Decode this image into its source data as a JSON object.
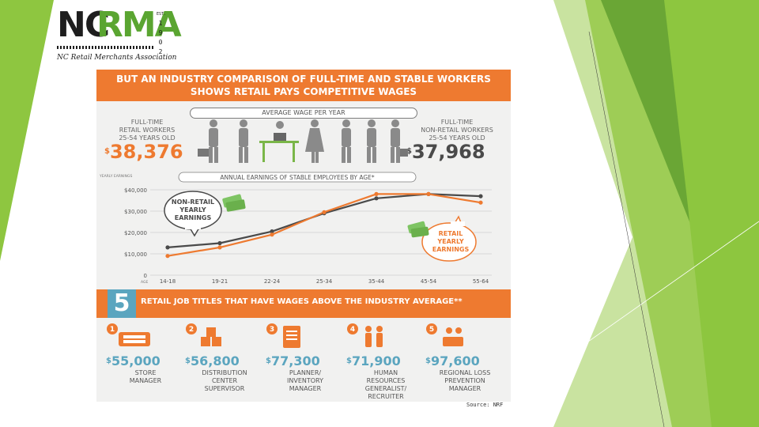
{
  "logo": {
    "nc": "NC",
    "rma": "RMA",
    "est": [
      "EST.",
      "1",
      "9",
      "0",
      "2"
    ],
    "subtitle": "NC Retail Merchants Association"
  },
  "infographic": {
    "title_line1": "BUT AN INDUSTRY COMPARISON OF FULL-TIME AND STABLE WORKERS",
    "title_line2": "SHOWS RETAIL PAYS COMPETITIVE WAGES",
    "average_wage_label": "AVERAGE WAGE PER YEAR",
    "retail_workers_label": [
      "FULL-TIME",
      "RETAIL WORKERS",
      "25-54 YEARS OLD"
    ],
    "non_retail_workers_label": [
      "FULL-TIME",
      "NON-RETAIL WORKERS",
      "25-54 YEARS OLD"
    ],
    "retail_wage": "38,376",
    "non_retail_wage": "37,968",
    "dollar_sign": "$",
    "jobs_banner_number": "5",
    "jobs_banner_text": "RETAIL JOB TITLES THAT HAVE WAGES ABOVE THE INDUSTRY AVERAGE**",
    "jobs": [
      {
        "number": "1",
        "wage": "55,000",
        "title": [
          "STORE",
          "MANAGER"
        ]
      },
      {
        "number": "2",
        "wage": "56,800",
        "title": [
          "DISTRIBUTION",
          "CENTER",
          "SUPERVISOR"
        ]
      },
      {
        "number": "3",
        "wage": "77,300",
        "title": [
          "PLANNER/",
          "INVENTORY",
          "MANAGER"
        ]
      },
      {
        "number": "4",
        "wage": "71,900",
        "title": [
          "HUMAN",
          "RESOURCES",
          "GENERALIST/",
          "RECRUITER"
        ]
      },
      {
        "number": "5",
        "wage": "97,600",
        "title": [
          "REGIONAL LOSS",
          "PREVENTION",
          "MANAGER"
        ]
      }
    ]
  },
  "source_text": "Source: NRF",
  "colors": {
    "orange": "#ee7a30",
    "dark_gray": "#4a4a4a",
    "blue": "#5ba5bf",
    "green": "#5aa531",
    "money_green": "#7ec463"
  },
  "chart_data": {
    "type": "line",
    "title": "ANNUAL EARNINGS OF STABLE EMPLOYEES BY AGE*",
    "ylabel": "YEARLY EARNINGS",
    "xlabel": "AGE",
    "categories": [
      "14-18",
      "19-21",
      "22-24",
      "25-34",
      "35-44",
      "45-54",
      "55-64"
    ],
    "yticks": [
      "$40,000",
      "$30,000",
      "$20,000",
      "$10,000",
      "0"
    ],
    "ylim": [
      0,
      40000
    ],
    "grid": true,
    "series": [
      {
        "name": "NON-RETAIL YEARLY EARNINGS",
        "color": "#4a4a4a",
        "values": [
          13000,
          15000,
          20500,
          29000,
          36000,
          38000,
          37000
        ]
      },
      {
        "name": "RETAIL YEARLY EARNINGS",
        "color": "#ee7a30",
        "values": [
          9000,
          13000,
          19000,
          29500,
          38000,
          38000,
          34000
        ]
      }
    ],
    "annotations": [
      {
        "text": [
          "NON-RETAIL",
          "YEARLY",
          "EARNINGS"
        ]
      },
      {
        "text": [
          "RETAIL",
          "YEARLY",
          "EARNINGS"
        ]
      }
    ]
  }
}
